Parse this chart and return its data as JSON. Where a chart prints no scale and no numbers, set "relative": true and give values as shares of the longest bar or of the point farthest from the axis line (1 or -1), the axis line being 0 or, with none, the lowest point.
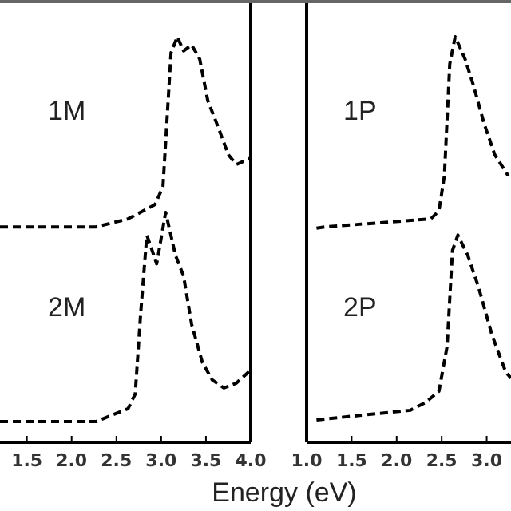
{
  "chart_data": [
    {
      "type": "line",
      "relative": true,
      "xlabel": "Energy (eV)",
      "xlim": [
        1.2,
        4.0
      ],
      "xticks": [
        1.5,
        {
          "value": 2,
          "label": "2.0"
        },
        2.5,
        {
          "value": 3,
          "label": "3.0"
        },
        3.5,
        {
          "value": 4,
          "label": "4.0"
        }
      ],
      "line_style": "dashed",
      "marker": "none",
      "series": [
        {
          "name": "1M",
          "color": "#000000",
          "x": [
            1.2,
            2.27,
            2.63,
            2.93,
            3.02,
            3.11,
            3.18,
            3.25,
            3.34,
            3.43,
            3.52,
            3.64,
            3.75,
            3.84,
            4.0
          ],
          "values": [
            0.531,
            0.531,
            0.551,
            0.586,
            0.63,
            0.96,
            1,
            0.965,
            0.98,
            0.945,
            0.843,
            0.775,
            0.709,
            0.685,
            0.701
          ]
        },
        {
          "name": "2M",
          "color": "#000000",
          "x": [
            1.2,
            2.27,
            2.63,
            2.71,
            2.77,
            2.84,
            2.95,
            3.05,
            3.16,
            3.25,
            3.34,
            3.46,
            3.57,
            3.7,
            3.84,
            4.0
          ],
          "values": [
            0.051,
            0.051,
            0.083,
            0.119,
            0.315,
            0.511,
            0.44,
            0.567,
            0.461,
            0.41,
            0.291,
            0.197,
            0.154,
            0.134,
            0.146,
            0.178
          ]
        }
      ]
    },
    {
      "type": "line",
      "relative": true,
      "xlim": [
        1.0,
        3.27
      ],
      "xticks": [
        {
          "value": 1,
          "label": "1.0"
        },
        1.5,
        {
          "value": 2,
          "label": "2.0"
        },
        2.5,
        {
          "value": 3,
          "label": "3.0"
        }
      ],
      "line_style": "dashed",
      "marker": "none",
      "series": [
        {
          "name": "1P",
          "color": "#000000",
          "x": [
            1.11,
            1.2,
            2.38,
            2.47,
            2.53,
            2.59,
            2.65,
            2.76,
            2.85,
            2.97,
            3.09,
            3.24
          ],
          "values": [
            0.528,
            0.531,
            0.551,
            0.571,
            0.657,
            0.933,
            1,
            0.945,
            0.882,
            0.787,
            0.709,
            0.657
          ]
        },
        {
          "name": "2P",
          "color": "#000000",
          "x": [
            1.11,
            1.61,
            2.15,
            2.32,
            2.47,
            2.56,
            2.62,
            2.68,
            2.79,
            2.91,
            3.06,
            3.21,
            3.27
          ],
          "values": [
            0.055,
            0.067,
            0.079,
            0.098,
            0.126,
            0.236,
            0.473,
            0.511,
            0.461,
            0.382,
            0.264,
            0.174,
            0.158
          ]
        }
      ]
    }
  ]
}
